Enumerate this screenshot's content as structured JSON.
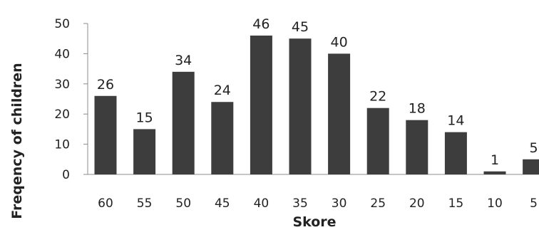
{
  "chart_data": {
    "type": "bar",
    "categories": [
      "60",
      "55",
      "50",
      "45",
      "40",
      "35",
      "30",
      "25",
      "20",
      "15",
      "10",
      "5"
    ],
    "values": [
      26,
      15,
      34,
      24,
      46,
      45,
      40,
      22,
      18,
      14,
      1,
      5
    ],
    "data_labels": [
      "26",
      "15",
      "34",
      "24",
      "46",
      "45",
      "40",
      "22",
      "18",
      "14",
      "1",
      "5"
    ],
    "xlabel": "Skore",
    "ylabel": "Freqency of children",
    "ylim": [
      0,
      50
    ],
    "yticks": [
      "0",
      "10",
      "20",
      "30",
      "40",
      "50"
    ],
    "grid": false,
    "bar_color": "#3d3d3d"
  }
}
